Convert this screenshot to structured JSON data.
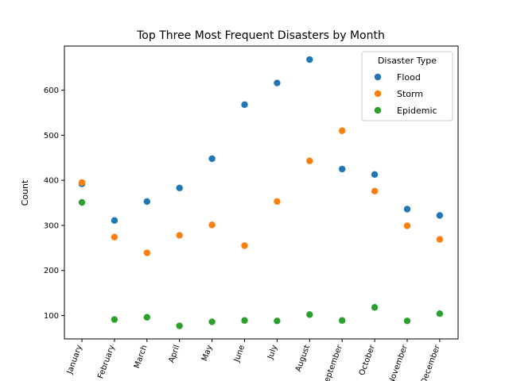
{
  "chart_data": {
    "type": "scatter",
    "title": "Top Three Most Frequent Disasters by Month",
    "xlabel": "",
    "ylabel": "Count",
    "categories": [
      "January",
      "February",
      "March",
      "April",
      "May",
      "June",
      "July",
      "August",
      "September",
      "October",
      "November",
      "December"
    ],
    "ylim": [
      48,
      698
    ],
    "yticks": [
      100,
      200,
      300,
      400,
      500,
      600
    ],
    "grid": false,
    "legend": {
      "title": "Disaster Type",
      "placement": "top-right"
    },
    "series": [
      {
        "name": "Flood",
        "color": "#1f77b4",
        "values": [
          392,
          311,
          353,
          383,
          448,
          568,
          616,
          668,
          425,
          413,
          336,
          322
        ]
      },
      {
        "name": "Storm",
        "color": "#ff7f0e",
        "values": [
          395,
          274,
          239,
          278,
          301,
          255,
          353,
          443,
          510,
          376,
          299,
          269
        ]
      },
      {
        "name": "Epidemic",
        "color": "#2ca02c",
        "values": [
          351,
          91,
          96,
          77,
          86,
          89,
          88,
          102,
          89,
          118,
          88,
          104
        ]
      }
    ]
  }
}
